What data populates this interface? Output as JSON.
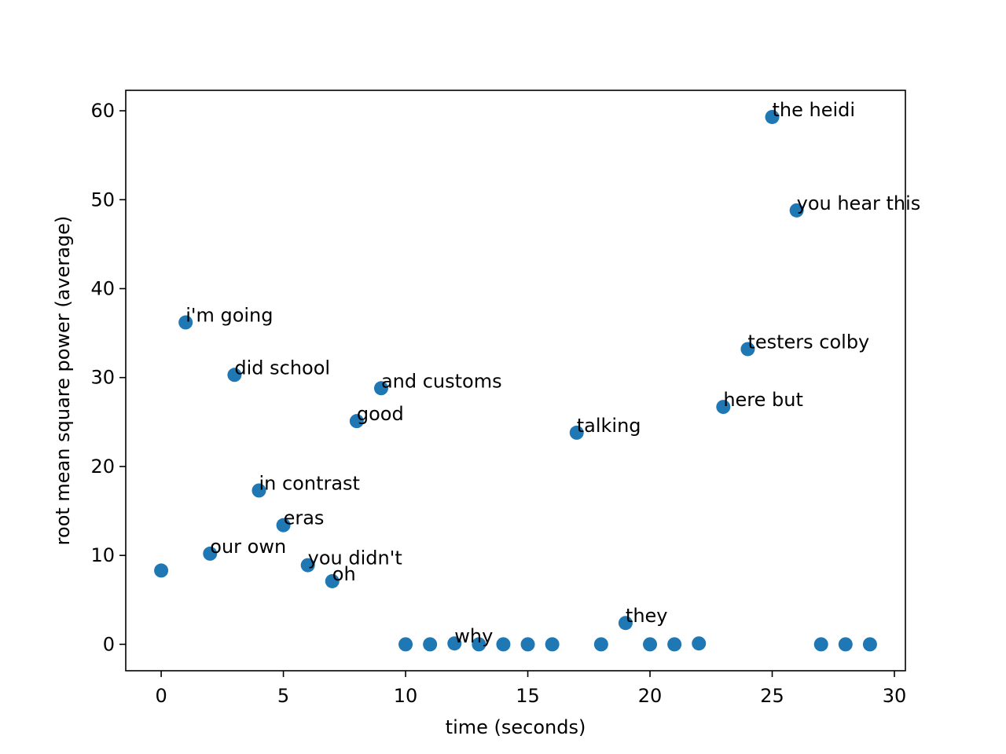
{
  "chart_data": {
    "type": "scatter",
    "title": "",
    "xlabel": "time (seconds)",
    "ylabel": "root mean square power (average)",
    "xlim": [
      -1.45,
      30.45
    ],
    "ylim": [
      -2.97,
      62.3
    ],
    "grid": false,
    "legend": "none",
    "marker_color": "#1f77b4",
    "x_ticks": [
      0,
      5,
      10,
      15,
      20,
      25,
      30
    ],
    "x_tick_labels": [
      "0",
      "5",
      "10",
      "15",
      "20",
      "25",
      "30"
    ],
    "y_ticks": [
      0,
      10,
      20,
      30,
      40,
      50,
      60
    ],
    "y_tick_labels": [
      "0",
      "10",
      "20",
      "30",
      "40",
      "50",
      "60"
    ],
    "points": [
      {
        "x": 0,
        "y": 8.3,
        "label": ""
      },
      {
        "x": 1,
        "y": 36.2,
        "label": "i'm going"
      },
      {
        "x": 2,
        "y": 10.2,
        "label": "our own"
      },
      {
        "x": 3,
        "y": 30.3,
        "label": "did school"
      },
      {
        "x": 4,
        "y": 17.3,
        "label": "in contrast"
      },
      {
        "x": 5,
        "y": 13.4,
        "label": "eras"
      },
      {
        "x": 6,
        "y": 8.9,
        "label": "you didn't"
      },
      {
        "x": 7,
        "y": 7.1,
        "label": "oh"
      },
      {
        "x": 8,
        "y": 25.1,
        "label": "good"
      },
      {
        "x": 9,
        "y": 28.8,
        "label": "and customs"
      },
      {
        "x": 10,
        "y": 0,
        "label": ""
      },
      {
        "x": 11,
        "y": 0,
        "label": ""
      },
      {
        "x": 12,
        "y": 0.1,
        "label": "why"
      },
      {
        "x": 13,
        "y": 0,
        "label": ""
      },
      {
        "x": 14,
        "y": 0,
        "label": ""
      },
      {
        "x": 15,
        "y": 0,
        "label": ""
      },
      {
        "x": 16,
        "y": 0,
        "label": ""
      },
      {
        "x": 17,
        "y": 23.8,
        "label": "talking"
      },
      {
        "x": 18,
        "y": 0,
        "label": ""
      },
      {
        "x": 19,
        "y": 2.4,
        "label": "they"
      },
      {
        "x": 20,
        "y": 0,
        "label": ""
      },
      {
        "x": 21,
        "y": 0,
        "label": ""
      },
      {
        "x": 22,
        "y": 0.1,
        "label": ""
      },
      {
        "x": 23,
        "y": 26.7,
        "label": "here but"
      },
      {
        "x": 24,
        "y": 33.2,
        "label": "testers colby"
      },
      {
        "x": 25,
        "y": 59.3,
        "label": "the heidi"
      },
      {
        "x": 26,
        "y": 48.8,
        "label": "you hear this"
      },
      {
        "x": 27,
        "y": 0,
        "label": ""
      },
      {
        "x": 28,
        "y": 0,
        "label": ""
      },
      {
        "x": 29,
        "y": 0,
        "label": ""
      }
    ]
  }
}
